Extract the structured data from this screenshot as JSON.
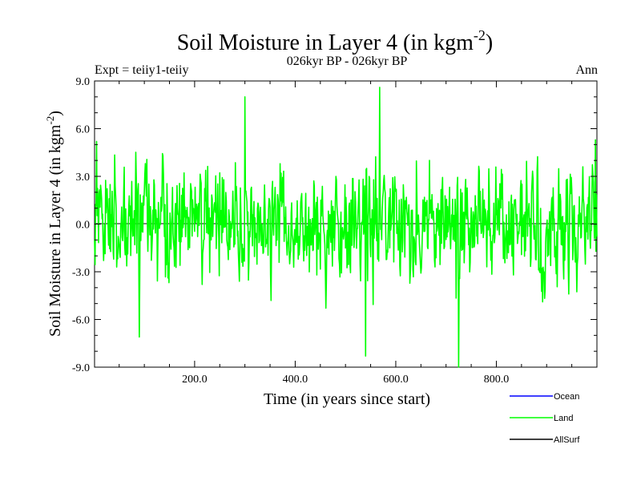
{
  "chart_data": {
    "type": "line",
    "title_main": "Soil Moisture in Layer 4 (in kgm",
    "title_sup": "-2",
    "title_close": ")",
    "subtitle": "026kyr BP - 026kyr BP",
    "experiment": "Expt = teiiy1-teiiy",
    "season": "Ann",
    "xlabel": "Time (in years since start)",
    "ylabel_main": "Soil Moisture in Layer 4 (in kgm",
    "ylabel_sup": "-2",
    "ylabel_close": ")",
    "xlim": [
      1,
      1000
    ],
    "ylim": [
      -9.0,
      9.0
    ],
    "x_ticks": [
      200,
      400,
      600,
      800
    ],
    "x_tick_labels": [
      "200.0",
      "400.0",
      "600.0",
      "800.0"
    ],
    "y_ticks": [
      9,
      6,
      3,
      0,
      -3,
      -6,
      -9
    ],
    "y_tick_labels": [
      "9.0",
      "6.0",
      "3.0",
      "0.0",
      "-3.0",
      "-6.0",
      "-9.0"
    ],
    "zero_line": 0.0,
    "legend": [
      {
        "name": "Ocean",
        "color": "#0000ff"
      },
      {
        "name": "Land",
        "color": "#00ff00"
      },
      {
        "name": "AllSurf",
        "color": "#000000"
      }
    ],
    "series": [
      {
        "name": "Land",
        "color": "#00ff00",
        "description": "annual soil moisture anomaly, one value per year for 1000 years",
        "n_points": 1000,
        "value_range": [
          -9.0,
          8.6
        ],
        "notable_points": [
          {
            "x": 1,
            "y": -1.0
          },
          {
            "x": 5,
            "y": 5.2
          },
          {
            "x": 90,
            "y": -7.1
          },
          {
            "x": 300,
            "y": 8.0
          },
          {
            "x": 540,
            "y": -8.3
          },
          {
            "x": 568,
            "y": 8.6
          },
          {
            "x": 725,
            "y": -9.0
          },
          {
            "x": 997,
            "y": 5.3
          }
        ]
      }
    ]
  }
}
